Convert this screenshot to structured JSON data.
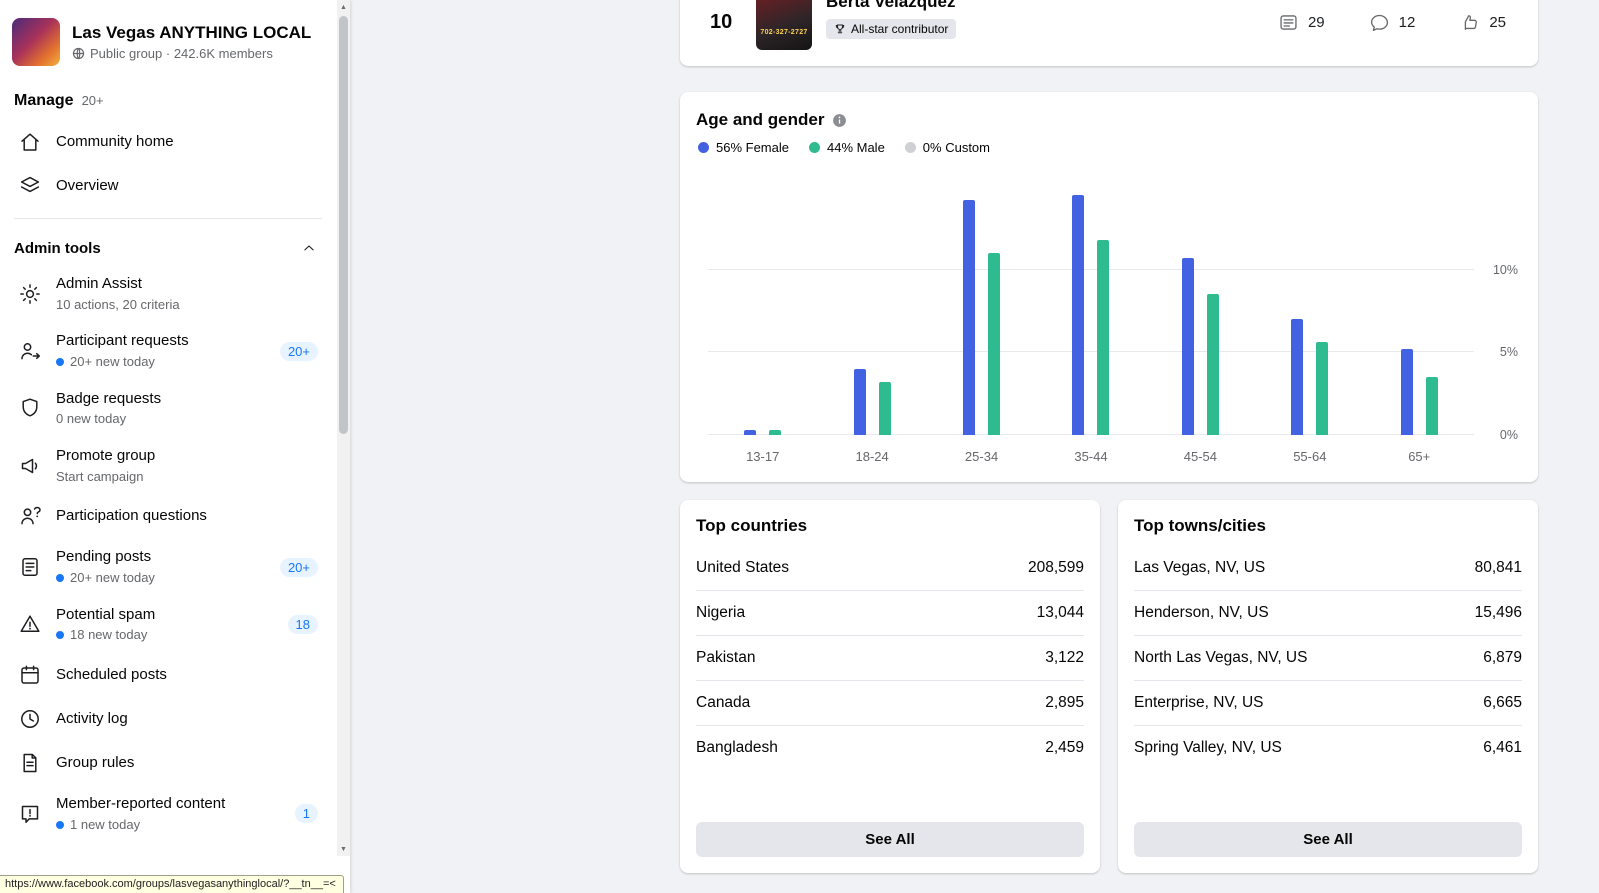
{
  "colors": {
    "female": "#4262e1",
    "male": "#2ebb8f",
    "custom": "#ced0d4",
    "accent_blue": "#1877f2"
  },
  "sidebar": {
    "group_name": "Las Vegas ANYTHING LOCAL",
    "group_meta": "Public group · 242.6K members",
    "manage": {
      "label": "Manage",
      "badge": "20+"
    },
    "nav_items": [
      {
        "label": "Community home"
      },
      {
        "label": "Overview"
      }
    ],
    "admin_tools": {
      "label": "Admin tools"
    },
    "admin_items": [
      {
        "label": "Admin Assist",
        "sub": "10 actions, 20 criteria"
      },
      {
        "label": "Participant requests",
        "sub": "20+ new today",
        "badge": "20+"
      },
      {
        "label": "Badge requests",
        "sub": "0 new today"
      },
      {
        "label": "Promote group",
        "sub": "Start campaign"
      },
      {
        "label": "Participation questions"
      },
      {
        "label": "Pending posts",
        "sub": "20+ new today",
        "badge": "20+"
      },
      {
        "label": "Potential spam",
        "sub": "18 new today",
        "badge": "18"
      },
      {
        "label": "Scheduled posts"
      },
      {
        "label": "Activity log"
      },
      {
        "label": "Group rules"
      },
      {
        "label": "Member-reported content",
        "sub": "1 new today",
        "badge": "1"
      }
    ],
    "status_url": "https://www.facebook.com/groups/lasvegasanythinglocal/?__tn__=<"
  },
  "contributor": {
    "rank": "10",
    "name": "Berta Velazquez",
    "badge": "All-star contributor",
    "avatar_text": "702-327-2727",
    "stats": {
      "posts": "29",
      "comments": "12",
      "reactions": "25"
    }
  },
  "age_gender": {
    "title": "Age and gender",
    "legend": [
      {
        "label": "56% Female",
        "color": "#4262e1"
      },
      {
        "label": "44% Male",
        "color": "#2ebb8f"
      },
      {
        "label": "0% Custom",
        "color": "#ced0d4"
      }
    ]
  },
  "chart_data": {
    "type": "bar",
    "title": "Age and gender",
    "categories": [
      "13-17",
      "18-24",
      "25-34",
      "35-44",
      "45-54",
      "55-64",
      "65+"
    ],
    "series": [
      {
        "name": "Female",
        "color": "#4262e1",
        "values": [
          0.3,
          4.0,
          14.2,
          14.5,
          10.7,
          7.0,
          5.2
        ]
      },
      {
        "name": "Male",
        "color": "#2ebb8f",
        "values": [
          0.3,
          3.2,
          11.0,
          11.8,
          8.5,
          5.6,
          3.5
        ]
      }
    ],
    "xlabel": "",
    "ylabel": "",
    "ylim": [
      0,
      15
    ],
    "yticks": [
      {
        "value": 0,
        "label": "0%"
      },
      {
        "value": 5,
        "label": "5%"
      },
      {
        "value": 10,
        "label": "10%"
      }
    ],
    "legend_position": "top",
    "grid": true
  },
  "top_countries": {
    "title": "Top countries",
    "rows": [
      {
        "name": "United States",
        "value": "208,599"
      },
      {
        "name": "Nigeria",
        "value": "13,044"
      },
      {
        "name": "Pakistan",
        "value": "3,122"
      },
      {
        "name": "Canada",
        "value": "2,895"
      },
      {
        "name": "Bangladesh",
        "value": "2,459"
      }
    ],
    "see_all": "See All"
  },
  "top_cities": {
    "title": "Top towns/cities",
    "rows": [
      {
        "name": "Las Vegas, NV, US",
        "value": "80,841"
      },
      {
        "name": "Henderson, NV, US",
        "value": "15,496"
      },
      {
        "name": "North Las Vegas, NV, US",
        "value": "6,879"
      },
      {
        "name": "Enterprise, NV, US",
        "value": "6,665"
      },
      {
        "name": "Spring Valley, NV, US",
        "value": "6,461"
      }
    ],
    "see_all": "See All"
  }
}
